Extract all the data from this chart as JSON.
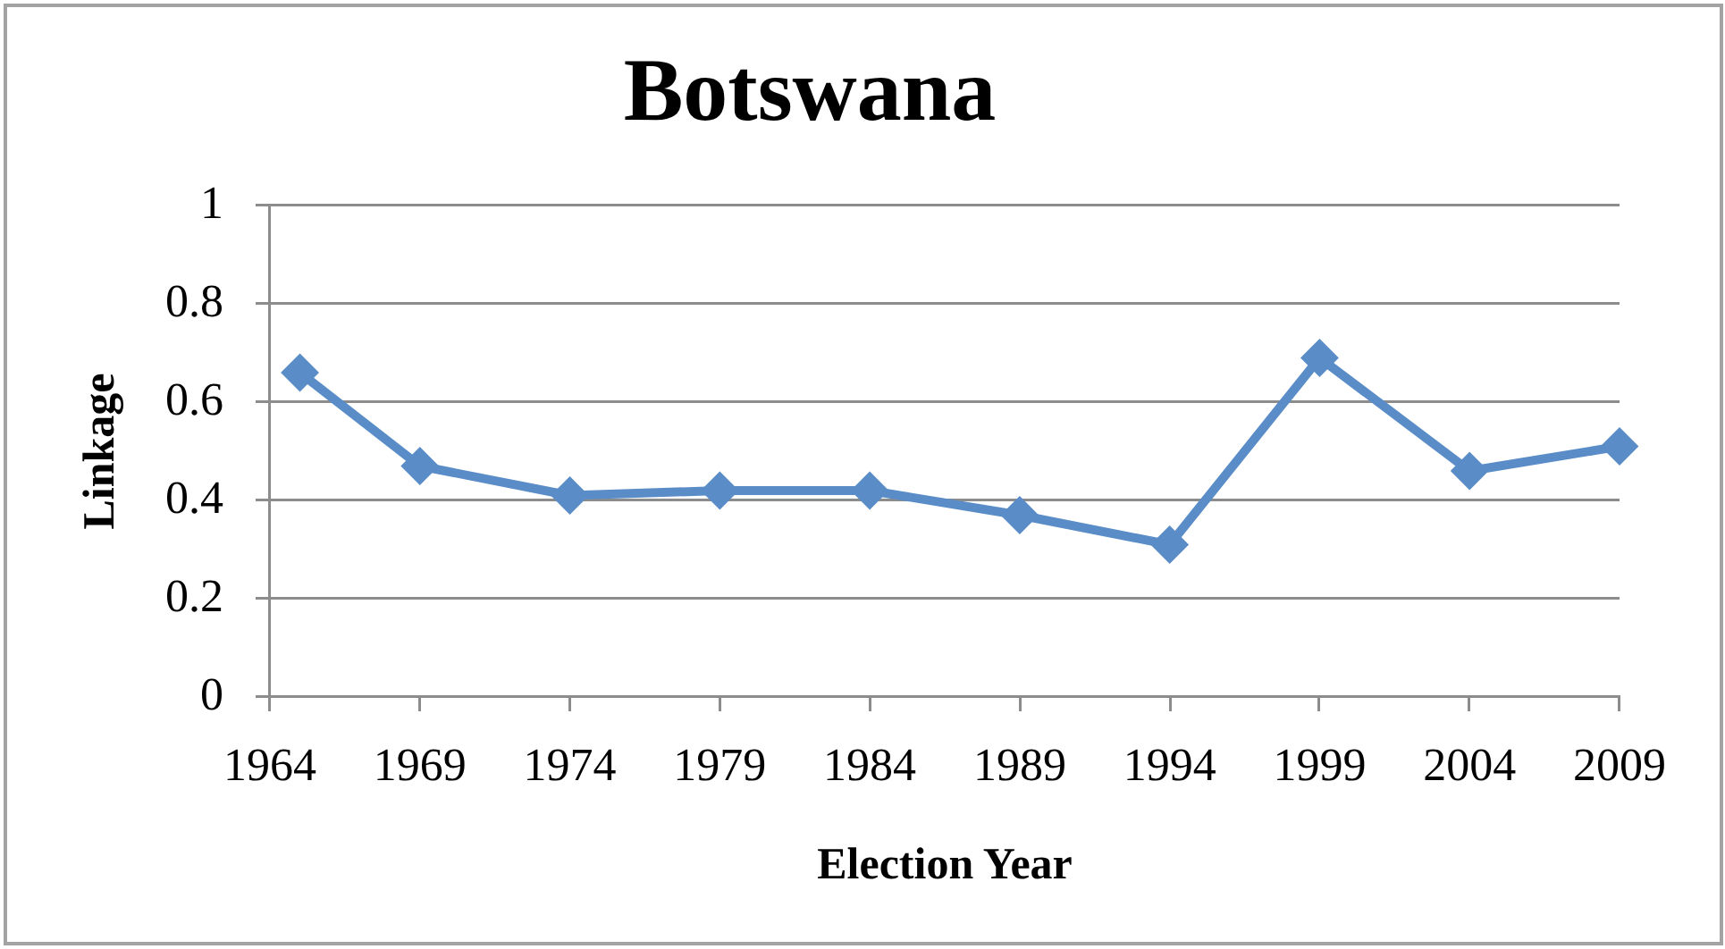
{
  "chart_data": {
    "type": "line",
    "title": "Botswana",
    "xlabel": "Election Year",
    "ylabel": "Linkage",
    "x": [
      1965,
      1969,
      1974,
      1979,
      1984,
      1989,
      1994,
      1999,
      2004,
      2009
    ],
    "series": [
      {
        "color": "#5a8dc8",
        "values": [
          0.66,
          0.47,
          0.41,
          0.42,
          0.42,
          0.37,
          0.31,
          0.69,
          0.46,
          0.51
        ]
      }
    ],
    "xlim": [
      1964,
      2009
    ],
    "xticks": [
      1964,
      1969,
      1974,
      1979,
      1984,
      1989,
      1994,
      1999,
      2004,
      2009
    ],
    "ylim": [
      0,
      1
    ],
    "yticks": [
      0,
      0.2,
      0.4,
      0.6,
      0.8,
      1
    ],
    "grid": "y",
    "marker": "diamond",
    "line_style": "solid"
  }
}
